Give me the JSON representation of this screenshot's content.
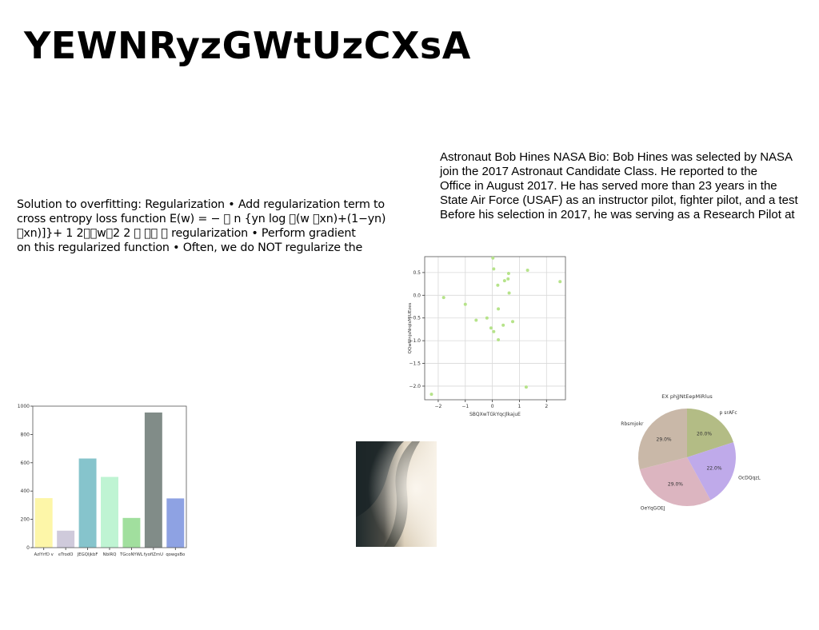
{
  "slide": {
    "title": "YEWNRyzGWtUzCXsA",
    "left_text": [
      "Solution to overfitting: Regularization • Add regularization term to",
      "cross entropy loss function E(w) = − ￿ n {yn log ￿(w ￿xn)+(1−yn)",
      "￿xn)]}+ 1 2￿￿w￿2 2 ￿ ￿￿ ￿ regularization • Perform gradient",
      "on this regularized function • Often, we do NOT regularize the"
    ],
    "right_text": [
      "Astronaut Bob Hines NASA Bio: Bob Hines was selected by NASA",
      "join the 2017 Astronaut Candidate Class. He reported to the",
      "Office in August 2017. He has served more than 23 years in the",
      "State Air Force (USAF) as an instructor pilot, fighter pilot, and a test",
      "Before his selection in 2017, he was serving as a Research Pilot at"
    ]
  },
  "chart_data": [
    {
      "type": "scatter",
      "title": "",
      "xlabel": "SBQXwTGkYqcJlkajuE",
      "ylabel": "QQwWnjsNrqIsMIUEzes",
      "xlim": [
        -2.5,
        2.7
      ],
      "ylim": [
        -2.3,
        0.85
      ],
      "xticks": [
        -2,
        -1,
        0,
        1,
        2
      ],
      "yticks": [
        0.5,
        0.0,
        -0.5,
        -1.0,
        -1.5,
        -2.0
      ],
      "ytick_labels": [
        "0.5",
        "0.0",
        "−0.5",
        "−1.0",
        "−1.5",
        "−2.0"
      ],
      "xtick_labels": [
        "−2",
        "−1",
        "0",
        "1",
        "2"
      ],
      "grid": true,
      "color": "#b6e38a",
      "points": [
        [
          0.02,
          0.82
        ],
        [
          0.05,
          0.58
        ],
        [
          1.3,
          0.55
        ],
        [
          0.6,
          0.48
        ],
        [
          0.45,
          0.32
        ],
        [
          0.58,
          0.36
        ],
        [
          0.2,
          0.22
        ],
        [
          2.5,
          0.3
        ],
        [
          0.62,
          0.05
        ],
        [
          -1.8,
          -0.05
        ],
        [
          -1.0,
          -0.2
        ],
        [
          0.22,
          -0.3
        ],
        [
          -0.6,
          -0.55
        ],
        [
          -0.2,
          -0.5
        ],
        [
          0.75,
          -0.58
        ],
        [
          0.4,
          -0.66
        ],
        [
          -0.05,
          -0.72
        ],
        [
          0.05,
          -0.8
        ],
        [
          0.22,
          -0.98
        ],
        [
          1.25,
          -2.02
        ],
        [
          -2.25,
          -2.18
        ]
      ]
    },
    {
      "type": "bar",
      "title": "",
      "xlabel": "",
      "ylabel": "",
      "ylim": [
        0,
        1000
      ],
      "yticks": [
        0,
        200,
        400,
        600,
        800,
        1000
      ],
      "categories": [
        "AzlYrfD v",
        "eTrodO",
        "JEGQIjkbF",
        "NbIRQ",
        "TGcoNYWL",
        "fyofIZmU",
        "qowgsBo"
      ],
      "values": [
        350,
        120,
        630,
        500,
        210,
        955,
        348
      ],
      "colors": [
        "#fdf6a8",
        "#cfcadb",
        "#86c4cc",
        "#bff4d3",
        "#a1df9e",
        "#818c88",
        "#8ea2e3"
      ]
    },
    {
      "type": "pie",
      "title": "EX phjJNtEepMiRlus",
      "slices": [
        {
          "label": "p srAFc",
          "value": 20.0,
          "pct_label": "20.0%",
          "color": "#b3bc85"
        },
        {
          "label": "OcDQqzL",
          "value": 22.0,
          "pct_label": "22.0%",
          "color": "#bfaaea"
        },
        {
          "label": "OeYqGOEJ",
          "value": 29.0,
          "pct_label": "29.0%",
          "color": "#dcb5c0"
        },
        {
          "label": "Rbsmjokr",
          "value": 29.0,
          "pct_label": "29.0%",
          "color": "#c9b8a8"
        }
      ]
    }
  ]
}
